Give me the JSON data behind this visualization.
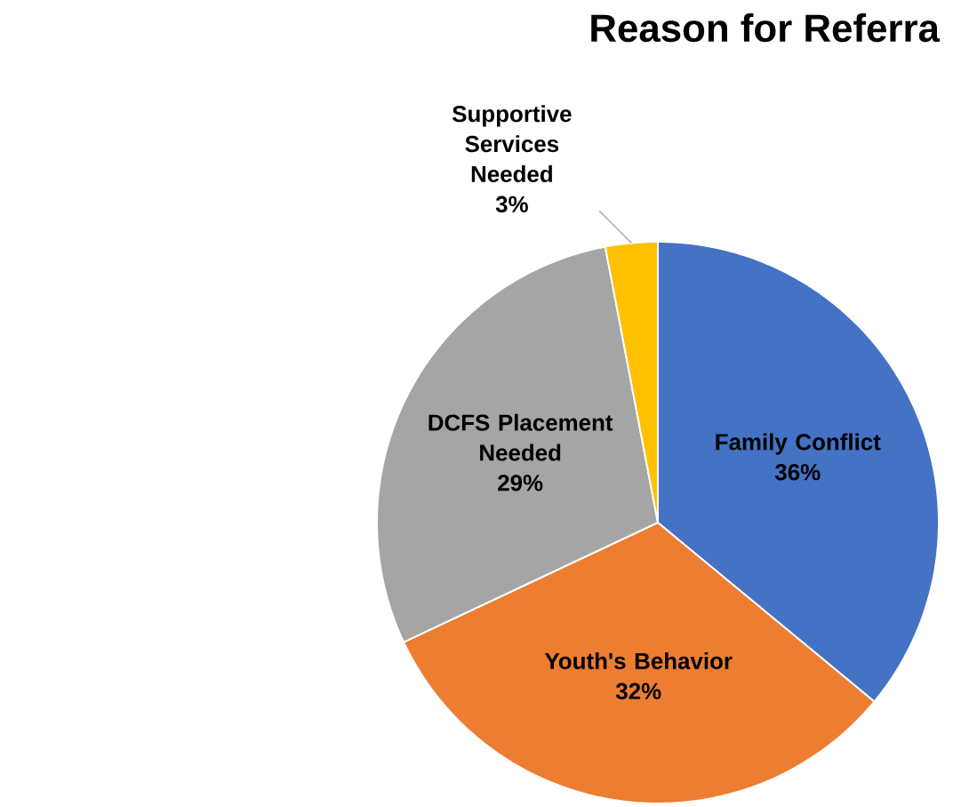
{
  "chart_data": {
    "type": "pie",
    "title": "Reason for Referra",
    "categories": [
      "Family Conflict",
      "Youth's Behavior",
      "DCFS Placement Needed",
      "Supportive Services Needed"
    ],
    "values": [
      36,
      32,
      29,
      3
    ],
    "value_labels": [
      "36%",
      "32%",
      "29%",
      "3%"
    ],
    "colors": [
      "#4472c4",
      "#ed7d31",
      "#a5a5a5",
      "#ffc000"
    ]
  }
}
